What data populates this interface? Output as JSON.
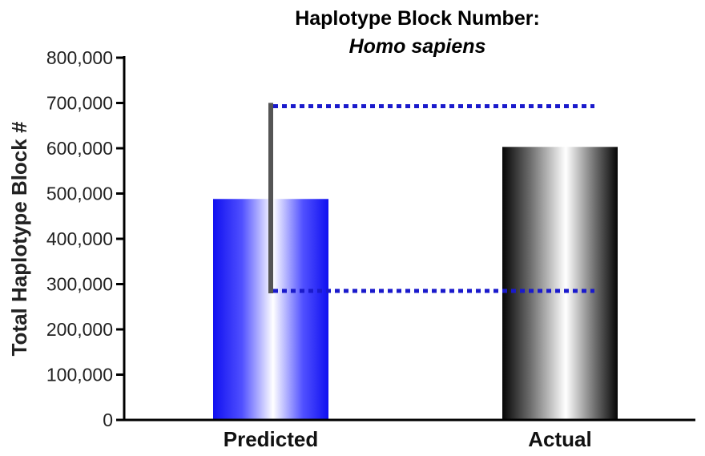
{
  "chart_data": {
    "type": "bar",
    "title": "Haplotype Block Number:",
    "subtitle": "Homo sapiens",
    "xlabel": "",
    "ylabel": "Total Haplotype Block #",
    "categories": [
      "Predicted",
      "Actual"
    ],
    "values": [
      488000,
      603000
    ],
    "ylim": [
      0,
      800000
    ],
    "yticks": [
      0,
      100000,
      200000,
      300000,
      400000,
      500000,
      600000,
      700000,
      800000
    ],
    "ytick_labels": [
      "0",
      "100,000",
      "200,000",
      "300,000",
      "400,000",
      "500,000",
      "600,000",
      "700,000",
      "800,000"
    ],
    "error_range": {
      "category": "Predicted",
      "low": 285000,
      "high": 695000
    },
    "reference_lines": [
      {
        "value": 693000,
        "style": "dotted"
      },
      {
        "value": 285000,
        "style": "dotted"
      }
    ],
    "bar_colors": [
      "#1a1aff",
      "#000000"
    ],
    "reference_line_color": "#1a1acc",
    "error_bar_color": "#555555",
    "grid": false,
    "legend": "none"
  }
}
